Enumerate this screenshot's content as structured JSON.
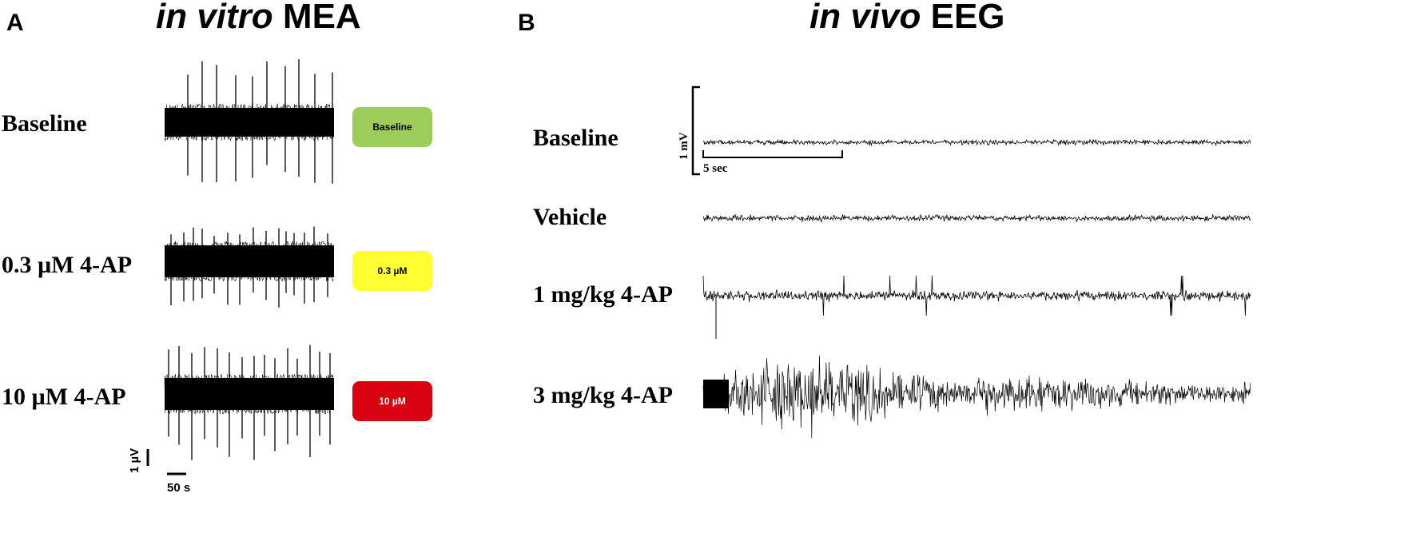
{
  "panel_a": {
    "letter": "A",
    "title_italic": "in vitro",
    "title_rest": " MEA",
    "rows": [
      {
        "label": "Baseline",
        "badge": "Baseline",
        "badge_color": "#9ccc5a",
        "badge_text_color": "#000000"
      },
      {
        "label": "0.3 µM 4-AP",
        "badge": "0.3 µM",
        "badge_color": "#ffff33",
        "badge_text_color": "#000000"
      },
      {
        "label": "10 µM 4-AP",
        "badge": "10 µM",
        "badge_color": "#d9000f",
        "badge_text_color": "#ffffff"
      }
    ],
    "scale_y_label": "1 µV",
    "scale_x_label": "50 s"
  },
  "panel_b": {
    "letter": "B",
    "title_italic": "in vivo",
    "title_rest": " EEG",
    "rows": [
      {
        "label": "Baseline"
      },
      {
        "label": "Vehicle"
      },
      {
        "label": "1 mg/kg 4-AP"
      },
      {
        "label": "3 mg/kg 4-AP"
      }
    ],
    "scale_y_label": "1 mV",
    "scale_x_label": "5 sec"
  },
  "colors": {
    "trace": "#000000",
    "background": "#ffffff"
  }
}
